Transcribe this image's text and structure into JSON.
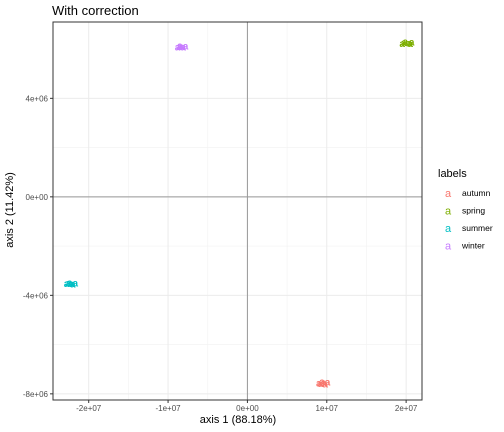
{
  "chart_data": {
    "type": "scatter",
    "title": "With correction",
    "xlabel": "axis 1 (88.18%)",
    "ylabel": "axis 2 (11.42%)",
    "xlim": [
      -24500000,
      22000000
    ],
    "ylim": [
      -8250000,
      7100000
    ],
    "x_ticks": [
      -20000000,
      -10000000,
      0,
      10000000,
      20000000
    ],
    "x_tick_labels": [
      "-2e+07",
      "-1e+07",
      "0e+00",
      "1e+07",
      "2e+07"
    ],
    "y_ticks": [
      -8000000,
      -4000000,
      0,
      4000000
    ],
    "y_tick_labels": [
      "-8e+06",
      "-4e+06",
      "0e+00",
      "4e+06"
    ],
    "grid": true,
    "reference_lines": {
      "x": 0,
      "y": 0
    },
    "marker": "a",
    "legend": {
      "title": "labels",
      "position": "right"
    },
    "series": [
      {
        "name": "autumn",
        "color": "#F8766D",
        "points": [
          [
            9000000,
            -7550000
          ],
          [
            9400000,
            -7500000
          ],
          [
            9800000,
            -7600000
          ],
          [
            10100000,
            -7520000
          ],
          [
            9200000,
            -7580000
          ],
          [
            9600000,
            -7540000
          ]
        ]
      },
      {
        "name": "spring",
        "color": "#7CAE00",
        "points": [
          [
            19500000,
            6230000
          ],
          [
            19900000,
            6300000
          ],
          [
            20300000,
            6250000
          ],
          [
            20700000,
            6280000
          ],
          [
            19700000,
            6270000
          ],
          [
            20500000,
            6220000
          ]
        ]
      },
      {
        "name": "summer",
        "color": "#00BFC4",
        "points": [
          [
            -22800000,
            -3520000
          ],
          [
            -22400000,
            -3470000
          ],
          [
            -22000000,
            -3540000
          ],
          [
            -21700000,
            -3490000
          ],
          [
            -22600000,
            -3500000
          ],
          [
            -22200000,
            -3510000
          ]
        ]
      },
      {
        "name": "winter",
        "color": "#C77CFF",
        "points": [
          [
            -8800000,
            6090000
          ],
          [
            -8500000,
            6140000
          ],
          [
            -8100000,
            6080000
          ],
          [
            -7800000,
            6120000
          ],
          [
            -8600000,
            6110000
          ],
          [
            -8300000,
            6100000
          ]
        ]
      }
    ]
  }
}
